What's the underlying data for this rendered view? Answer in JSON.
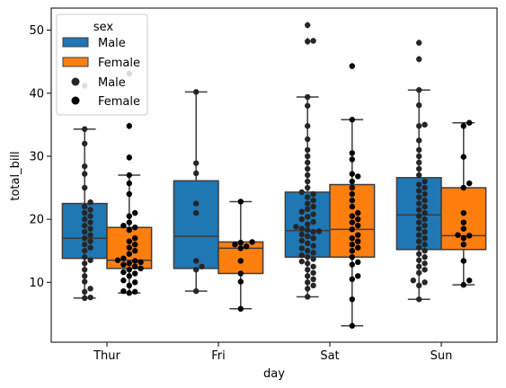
{
  "chart_data": {
    "type": "box",
    "xlabel": "day",
    "ylabel": "total_bill",
    "categories": [
      "Thur",
      "Fri",
      "Sat",
      "Sun"
    ],
    "ylim": [
      0.5,
      53.5
    ],
    "yticks": [
      10,
      20,
      30,
      40,
      50
    ],
    "grid": false,
    "hue_colors": {
      "Male": "#1f77b4",
      "Female": "#ff7f0e"
    },
    "legend": {
      "title": "sex",
      "position": "top-left",
      "box_entries": [
        "Male",
        "Female"
      ],
      "point_entries": [
        "Male",
        "Female"
      ]
    },
    "boxes": [
      {
        "day": "Thur",
        "sex": "Male",
        "whislo": 7.5,
        "q1": 13.8,
        "med": 17.0,
        "q3": 22.5,
        "whishi": 34.3,
        "fliers": [
          41.2
        ]
      },
      {
        "day": "Thur",
        "sex": "Female",
        "whislo": 8.3,
        "q1": 12.2,
        "med": 13.5,
        "q3": 18.7,
        "whishi": 27.0,
        "fliers": [
          29.8,
          34.8,
          43.1
        ]
      },
      {
        "day": "Fri",
        "sex": "Male",
        "whislo": 8.6,
        "q1": 12.2,
        "med": 17.3,
        "q3": 26.1,
        "whishi": 40.2,
        "fliers": []
      },
      {
        "day": "Fri",
        "sex": "Female",
        "whislo": 5.8,
        "q1": 11.4,
        "med": 15.4,
        "q3": 16.4,
        "whishi": 22.8,
        "fliers": []
      },
      {
        "day": "Sat",
        "sex": "Male",
        "whislo": 7.7,
        "q1": 14.0,
        "med": 18.2,
        "q3": 24.3,
        "whishi": 39.4,
        "fliers": [
          48.2,
          48.3,
          50.8
        ]
      },
      {
        "day": "Sat",
        "sex": "Female",
        "whislo": 3.1,
        "q1": 14.0,
        "med": 18.4,
        "q3": 25.5,
        "whishi": 35.8,
        "fliers": [
          44.3
        ]
      },
      {
        "day": "Sun",
        "sex": "Male",
        "whislo": 7.3,
        "q1": 15.2,
        "med": 20.7,
        "q3": 26.6,
        "whishi": 40.5,
        "fliers": [
          45.4,
          48.0
        ]
      },
      {
        "day": "Sun",
        "sex": "Female",
        "whislo": 9.6,
        "q1": 15.2,
        "med": 17.4,
        "q3": 25.0,
        "whishi": 35.3,
        "fliers": []
      }
    ],
    "swarm": [
      {
        "day": "Thur",
        "sex": "Male",
        "values": [
          7.5,
          7.6,
          8.5,
          9.0,
          10.1,
          11.0,
          12.0,
          13.0,
          13.5,
          14.0,
          15.0,
          15.5,
          16.0,
          16.5,
          17.0,
          17.5,
          18.0,
          18.5,
          19.0,
          19.5,
          20.0,
          20.5,
          21.0,
          21.5,
          22.0,
          22.7,
          25.0,
          27.2,
          28.4,
          32.0,
          34.3,
          41.2
        ]
      },
      {
        "day": "Thur",
        "sex": "Female",
        "values": [
          8.3,
          8.5,
          8.6,
          9.5,
          10.0,
          10.3,
          11.0,
          11.4,
          11.6,
          12.0,
          12.2,
          12.5,
          12.8,
          13.0,
          13.2,
          13.4,
          13.5,
          13.8,
          14.5,
          15.0,
          15.5,
          16.0,
          16.5,
          17.0,
          18.3,
          18.7,
          19.0,
          19.5,
          20.5,
          21.0,
          24.0,
          25.7,
          27.0,
          29.8,
          34.8,
          43.1
        ]
      },
      {
        "day": "Fri",
        "sex": "Male",
        "values": [
          8.6,
          12.0,
          12.5,
          13.4,
          21.0,
          22.5,
          27.3,
          28.9,
          40.2
        ]
      },
      {
        "day": "Fri",
        "sex": "Female",
        "values": [
          5.8,
          10.1,
          11.4,
          13.4,
          15.4,
          15.7,
          16.0,
          16.3,
          16.4,
          22.8
        ]
      },
      {
        "day": "Sat",
        "sex": "Male",
        "values": [
          7.7,
          9.0,
          9.5,
          10.0,
          10.5,
          11.0,
          11.5,
          12.0,
          12.5,
          13.0,
          13.3,
          13.7,
          14.0,
          14.3,
          14.7,
          15.0,
          15.4,
          15.8,
          16.2,
          16.6,
          17.0,
          17.3,
          17.6,
          18.0,
          18.1,
          18.3,
          18.5,
          18.8,
          19.2,
          19.6,
          20.0,
          20.4,
          20.8,
          21.2,
          21.6,
          22.0,
          22.5,
          23.0,
          23.5,
          24.0,
          24.3,
          25.0,
          26.0,
          27.0,
          28.0,
          29.0,
          30.0,
          31.0,
          32.7,
          34.8,
          38.0,
          39.4,
          48.2,
          48.3,
          50.8
        ]
      },
      {
        "day": "Sat",
        "sex": "Female",
        "values": [
          3.1,
          7.3,
          10.5,
          11.0,
          12.8,
          13.2,
          14.0,
          15.0,
          15.5,
          16.0,
          16.5,
          17.0,
          17.5,
          18.4,
          19.0,
          19.5,
          20.0,
          20.5,
          21.0,
          22.0,
          23.0,
          24.0,
          25.0,
          26.0,
          26.8,
          27.2,
          29.5,
          30.5,
          35.8,
          44.3
        ]
      },
      {
        "day": "Sun",
        "sex": "Male",
        "values": [
          7.3,
          9.5,
          10.0,
          10.3,
          11.5,
          12.0,
          12.5,
          13.0,
          13.5,
          14.0,
          14.5,
          15.0,
          15.5,
          16.0,
          16.5,
          17.0,
          17.5,
          18.0,
          18.5,
          19.0,
          19.5,
          20.0,
          20.5,
          21.0,
          21.5,
          22.0,
          22.5,
          23.0,
          23.5,
          24.0,
          24.5,
          25.0,
          25.5,
          26.0,
          27.0,
          28.0,
          29.0,
          30.0,
          31.0,
          32.5,
          34.8,
          35.0,
          38.1,
          40.5,
          45.4,
          48.0
        ]
      },
      {
        "day": "Sun",
        "sex": "Female",
        "values": [
          9.6,
          10.3,
          13.4,
          16.0,
          17.0,
          17.4,
          17.5,
          18.5,
          19.5,
          21.0,
          25.0,
          25.7,
          29.9,
          34.8,
          35.3
        ]
      }
    ]
  }
}
